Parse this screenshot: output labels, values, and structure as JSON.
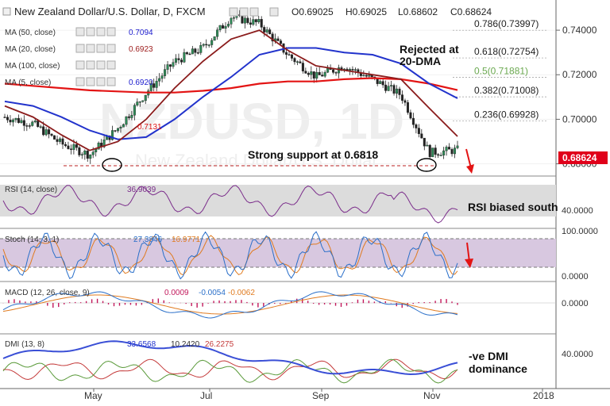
{
  "header": {
    "title": "New Zealand Dollar/U.S. Dollar, D, FXCM",
    "open": "O0.69025",
    "high": "H0.69025",
    "low": "L0.68602",
    "close": "C0.68624"
  },
  "indicators_main": [
    {
      "label": "MA (50, close)",
      "value": "0.7094",
      "color": "#1a1acd"
    },
    {
      "label": "MA (20, close)",
      "value": "0.6923",
      "color": "#9c1b1b"
    },
    {
      "label": "MA (100, close)",
      "value": "",
      "color": "#d11"
    },
    {
      "label": "MA (5, close)",
      "value": "0.6920",
      "color": "#1a1acd"
    }
  ],
  "watermark": "NZDUSD, 1D",
  "watermark_sub": "New Zealand Dollar/U.S. Dollar",
  "price_axis": {
    "ticks": [
      "0.74000",
      "0.72000",
      "0.70000",
      "0.68000"
    ],
    "last_price": "0.68624",
    "last_price_color": "#e0001a"
  },
  "fib_levels": [
    {
      "label": "0.786(0.73997)",
      "value": 0.73997
    },
    {
      "label": "0.618(0.72754)",
      "value": 0.72754
    },
    {
      "label": "0.5(0.71881)",
      "value": 0.71881
    },
    {
      "label": "0.382(0.71008)",
      "value": 0.71008
    },
    {
      "label": "0.236(0.69928)",
      "value": 0.69928
    }
  ],
  "ma_marker_label": "0.7131",
  "annotations": {
    "rejected": "Rejected at\n20-DMA",
    "support": "Strong support at 0.6818",
    "rsi": "RSI  biased south",
    "dmi": "-ve DMI\ndominance"
  },
  "rsi": {
    "label": "RSI (14, close)",
    "value": "36.9039",
    "axis": "40.0000"
  },
  "stoch": {
    "label": "Stoch (14, 3, 1)",
    "k": "27.3846",
    "d": "16.9771",
    "axis_top": "100.0000",
    "axis_bottom": "0.0000"
  },
  "macd": {
    "label": "MACD (12, 26, close, 9)",
    "hist": "0.0009",
    "macd": "-0.0054",
    "signal": "-0.0062",
    "axis": "0.0000"
  },
  "dmi": {
    "label": "DMI (13, 8)",
    "adx": "33.6568",
    "plus_di": "10.2420",
    "minus_di": "26.2275",
    "axis": "40.0000"
  },
  "time_axis": [
    "May",
    "Jul",
    "Sep",
    "Nov",
    "2018"
  ],
  "chart_data": [
    {
      "type": "line",
      "title": "New Zealand Dollar/U.S. Dollar, D, FXCM",
      "x": [
        "2017-03-27",
        "2017-04-10",
        "2017-04-24",
        "2017-05-08",
        "2017-05-22",
        "2017-06-05",
        "2017-06-19",
        "2017-07-03",
        "2017-07-17",
        "2017-07-31",
        "2017-08-14",
        "2017-08-28",
        "2017-09-11",
        "2017-09-25",
        "2017-10-09",
        "2017-10-23",
        "2017-11-06"
      ],
      "series": [
        {
          "name": "Close",
          "values": [
            0.701,
            0.698,
            0.689,
            0.684,
            0.696,
            0.712,
            0.726,
            0.732,
            0.746,
            0.743,
            0.729,
            0.719,
            0.724,
            0.718,
            0.711,
            0.685,
            0.6862
          ]
        },
        {
          "name": "MA (50, close)",
          "values": [
            0.708,
            0.706,
            0.701,
            0.695,
            0.691,
            0.692,
            0.7,
            0.71,
            0.719,
            0.729,
            0.732,
            0.732,
            0.73,
            0.729,
            0.725,
            0.716,
            0.7094
          ]
        },
        {
          "name": "MA (20, close)",
          "values": [
            0.706,
            0.701,
            0.693,
            0.686,
            0.69,
            0.7,
            0.714,
            0.726,
            0.736,
            0.74,
            0.731,
            0.724,
            0.722,
            0.72,
            0.718,
            0.705,
            0.6923
          ]
        },
        {
          "name": "MA (100, close)",
          "values": [
            0.716,
            0.715,
            0.714,
            0.713,
            0.7125,
            0.712,
            0.712,
            0.7128,
            0.714,
            0.716,
            0.717,
            0.717,
            0.718,
            0.7185,
            0.718,
            0.716,
            0.7131
          ]
        }
      ],
      "ylim": [
        0.677,
        0.75
      ],
      "ylabel": ""
    }
  ]
}
